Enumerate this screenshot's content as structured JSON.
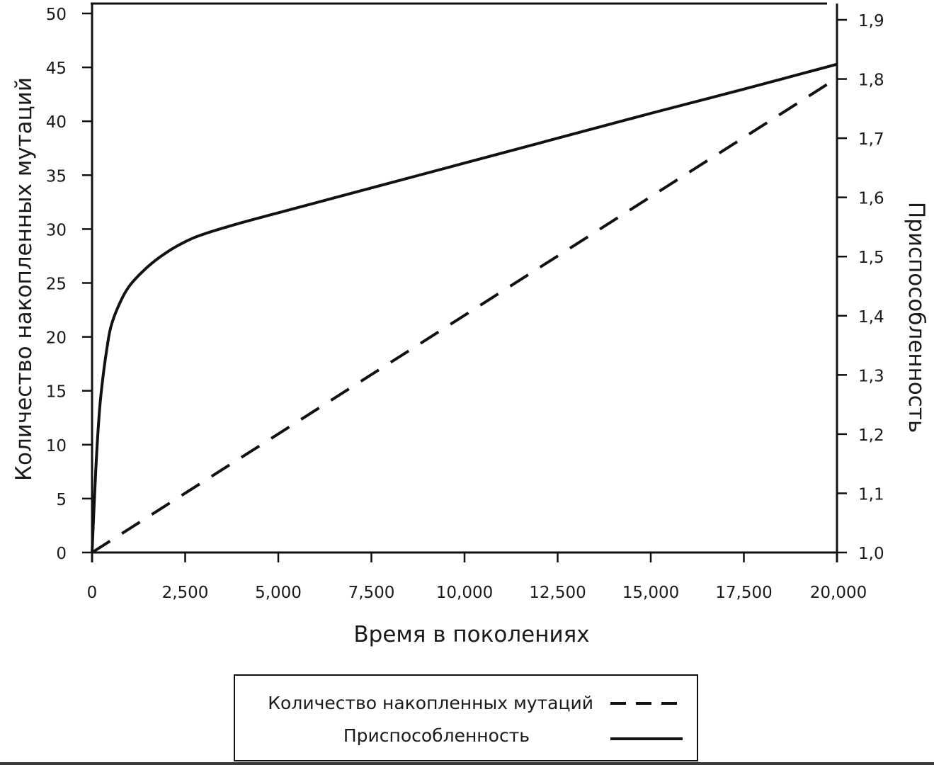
{
  "chart_data": {
    "type": "line",
    "xlabel": "Время в поколениях",
    "ylabel_left": "Количество накопленных мутаций",
    "ylabel_right": "Приспособленность",
    "x_ticks": [
      "0",
      "2,500",
      "5,000",
      "7,500",
      "10,000",
      "12,500",
      "15,000",
      "17,500",
      "20,000"
    ],
    "x_tick_values": [
      0,
      2500,
      5000,
      7500,
      10000,
      12500,
      15000,
      17500,
      20000
    ],
    "xlim": [
      0,
      20000
    ],
    "y_left_ticks": [
      "0",
      "5",
      "10",
      "15",
      "20",
      "25",
      "30",
      "35",
      "40",
      "45",
      "50"
    ],
    "y_left_tick_values": [
      0,
      5,
      10,
      15,
      20,
      25,
      30,
      35,
      40,
      45,
      50
    ],
    "y_left_lim": [
      0,
      50
    ],
    "y_right_ticks": [
      "1,0",
      "1,1",
      "1,2",
      "1,3",
      "1,4",
      "1,5",
      "1,6",
      "1,7",
      "1,8",
      "1,9"
    ],
    "y_right_tick_values": [
      1.0,
      1.1,
      1.2,
      1.3,
      1.4,
      1.5,
      1.6,
      1.7,
      1.8,
      1.9
    ],
    "y_right_lim": [
      1.0,
      1.9
    ],
    "grid": false,
    "legend_position": "bottom-center",
    "series": [
      {
        "name": "Количество накопленных мутаций",
        "axis": "left",
        "style": "dashed",
        "x": [
          0,
          20000
        ],
        "y": [
          0,
          44
        ]
      },
      {
        "name": "Приспособленность",
        "axis": "right",
        "style": "solid",
        "x": [
          0,
          100,
          200,
          300,
          400,
          500,
          700,
          1000,
          1500,
          2000,
          2500,
          3000,
          4000,
          5000,
          7500,
          10000,
          12500,
          15000,
          17500,
          20000
        ],
        "y": [
          1.0,
          1.14,
          1.24,
          1.3,
          1.345,
          1.38,
          1.415,
          1.45,
          1.483,
          1.507,
          1.525,
          1.538,
          1.557,
          1.574,
          1.616,
          1.658,
          1.7,
          1.742,
          1.783,
          1.825
        ]
      }
    ],
    "colors": {
      "line": "#111111",
      "frame": "#111111",
      "background": "#ffffff"
    }
  }
}
